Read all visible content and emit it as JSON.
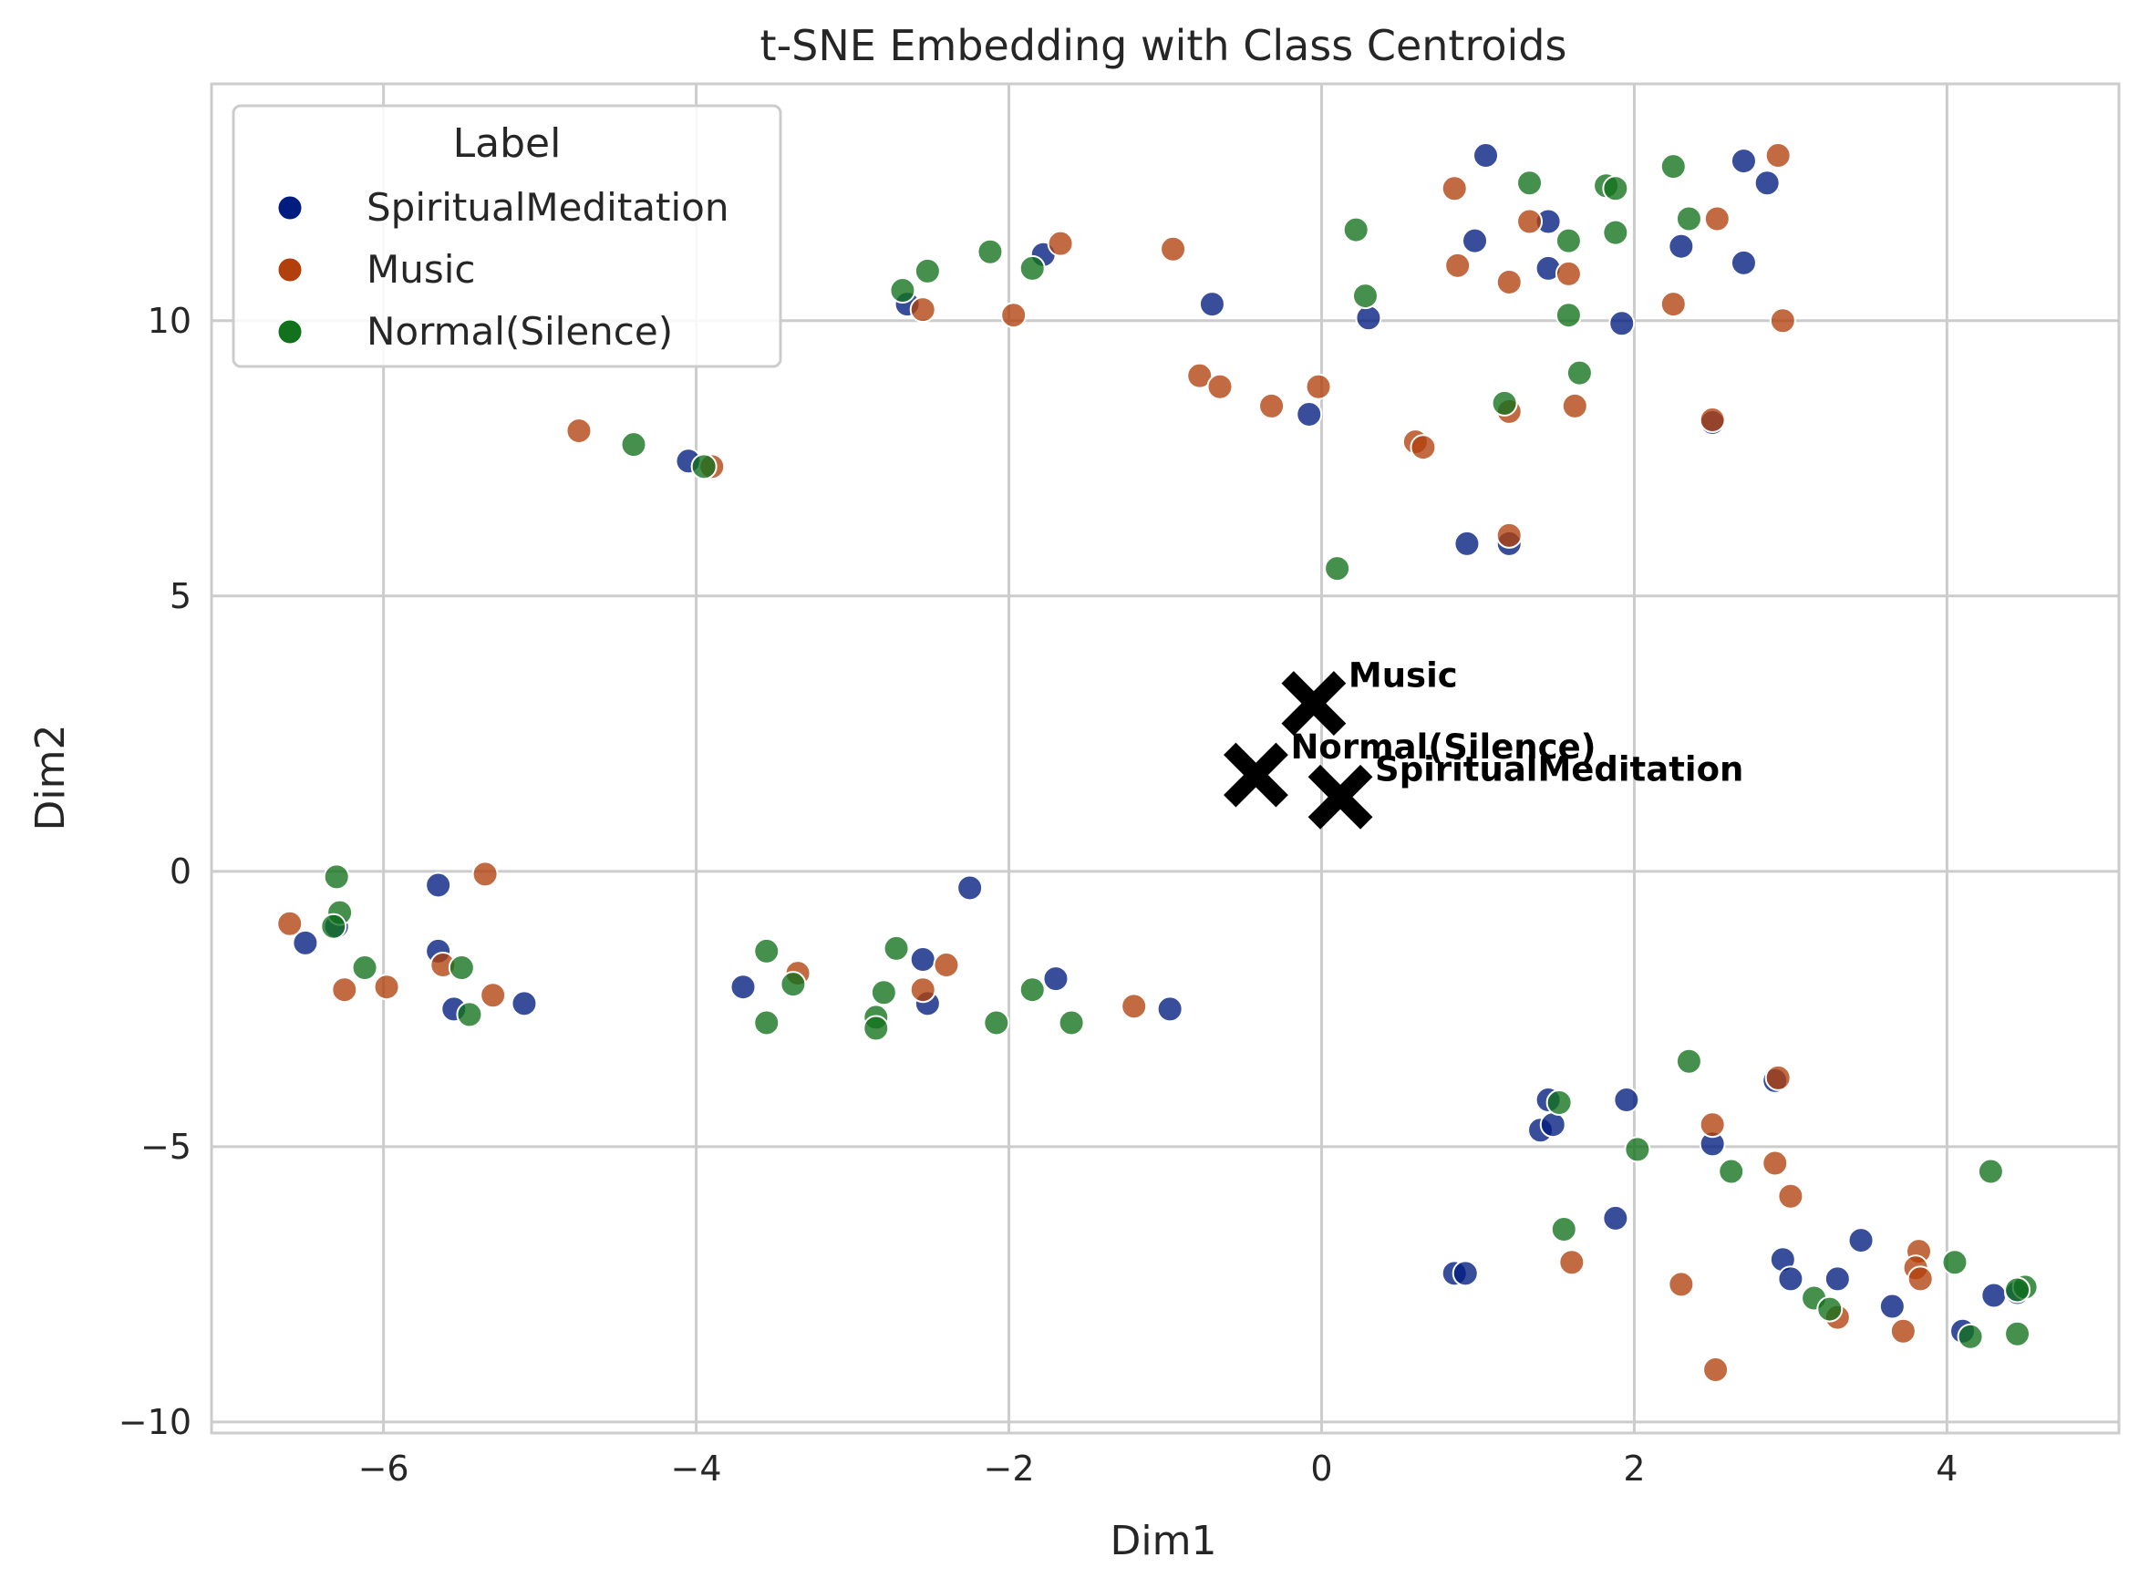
{
  "chart_data": {
    "type": "scatter",
    "title": "t-SNE Embedding with Class Centroids",
    "xlabel": "Dim1",
    "ylabel": "Dim2",
    "xlim": [
      -7.1,
      5.1
    ],
    "ylim": [
      -10.2,
      14.3
    ],
    "xticks": [
      -6,
      -4,
      -2,
      0,
      2,
      4
    ],
    "yticks": [
      -10,
      -5,
      0,
      5,
      10
    ],
    "xtick_labels": [
      "−6",
      "−4",
      "−2",
      "0",
      "2",
      "4"
    ],
    "ytick_labels": [
      "−10",
      "−5",
      "0",
      "5",
      "10"
    ],
    "grid": true,
    "legend": {
      "title": "Label",
      "placement": "top-left"
    },
    "series": [
      {
        "name": "SpiritualMeditation",
        "color": "#001c7f",
        "points": [
          [
            1.05,
            13.0
          ],
          [
            2.7,
            12.9
          ],
          [
            2.85,
            12.5
          ],
          [
            1.45,
            11.8
          ],
          [
            0.98,
            11.45
          ],
          [
            1.45,
            10.95
          ],
          [
            2.3,
            11.35
          ],
          [
            2.7,
            11.05
          ],
          [
            1.92,
            9.95
          ],
          [
            0.3,
            10.05
          ],
          [
            -0.7,
            10.3
          ],
          [
            -2.65,
            10.3
          ],
          [
            -1.78,
            11.2
          ],
          [
            -0.08,
            8.3
          ],
          [
            2.5,
            8.15
          ],
          [
            0.93,
            5.95
          ],
          [
            1.2,
            5.95
          ],
          [
            -4.05,
            7.45
          ],
          [
            -5.65,
            -0.25
          ],
          [
            -6.3,
            -1.0
          ],
          [
            -6.5,
            -1.3
          ],
          [
            -5.65,
            -1.45
          ],
          [
            -5.55,
            -2.5
          ],
          [
            -5.1,
            -2.4
          ],
          [
            -3.7,
            -2.1
          ],
          [
            -2.55,
            -1.6
          ],
          [
            -2.52,
            -2.4
          ],
          [
            -2.25,
            -0.3
          ],
          [
            -1.7,
            -1.95
          ],
          [
            -0.97,
            -2.5
          ],
          [
            1.45,
            -4.15
          ],
          [
            1.4,
            -4.7
          ],
          [
            1.48,
            -4.6
          ],
          [
            1.95,
            -4.15
          ],
          [
            2.5,
            -4.95
          ],
          [
            2.9,
            -3.8
          ],
          [
            1.88,
            -6.3
          ],
          [
            0.85,
            -7.3
          ],
          [
            0.92,
            -7.3
          ],
          [
            2.95,
            -7.05
          ],
          [
            3.0,
            -7.4
          ],
          [
            3.3,
            -7.4
          ],
          [
            3.45,
            -6.7
          ],
          [
            3.65,
            -7.9
          ],
          [
            4.1,
            -8.35
          ],
          [
            4.3,
            -7.7
          ],
          [
            4.45,
            -7.65
          ]
        ]
      },
      {
        "name": "Music",
        "color": "#b1400d",
        "points": [
          [
            2.92,
            13.0
          ],
          [
            0.85,
            12.4
          ],
          [
            1.33,
            11.8
          ],
          [
            2.53,
            11.85
          ],
          [
            0.87,
            11.0
          ],
          [
            1.58,
            10.85
          ],
          [
            1.2,
            10.7
          ],
          [
            2.25,
            10.3
          ],
          [
            2.95,
            10.0
          ],
          [
            -1.67,
            11.4
          ],
          [
            -0.95,
            11.3
          ],
          [
            -2.55,
            10.2
          ],
          [
            -1.97,
            10.1
          ],
          [
            -0.78,
            9.0
          ],
          [
            -0.65,
            8.8
          ],
          [
            -0.02,
            8.8
          ],
          [
            -0.32,
            8.45
          ],
          [
            1.2,
            8.35
          ],
          [
            1.62,
            8.45
          ],
          [
            2.5,
            8.2
          ],
          [
            0.6,
            7.8
          ],
          [
            0.65,
            7.7
          ],
          [
            1.2,
            6.1
          ],
          [
            -4.75,
            8.0
          ],
          [
            -3.9,
            7.35
          ],
          [
            -6.6,
            -0.95
          ],
          [
            -5.35,
            -0.05
          ],
          [
            -5.62,
            -1.7
          ],
          [
            -6.25,
            -2.15
          ],
          [
            -5.98,
            -2.1
          ],
          [
            -5.3,
            -2.25
          ],
          [
            -3.35,
            -1.85
          ],
          [
            -2.4,
            -1.7
          ],
          [
            -2.55,
            -2.15
          ],
          [
            -1.2,
            -2.45
          ],
          [
            2.92,
            -3.75
          ],
          [
            2.5,
            -4.6
          ],
          [
            2.9,
            -5.3
          ],
          [
            3.0,
            -5.9
          ],
          [
            1.6,
            -7.1
          ],
          [
            2.3,
            -7.5
          ],
          [
            2.52,
            -9.05
          ],
          [
            3.3,
            -8.1
          ],
          [
            3.72,
            -8.35
          ],
          [
            3.82,
            -6.9
          ],
          [
            3.8,
            -7.2
          ],
          [
            3.83,
            -7.4
          ]
        ]
      },
      {
        "name": "Normal(Silence)",
        "color": "#12711c",
        "points": [
          [
            1.33,
            12.5
          ],
          [
            1.82,
            12.45
          ],
          [
            1.88,
            12.4
          ],
          [
            2.25,
            12.8
          ],
          [
            2.35,
            11.85
          ],
          [
            1.58,
            11.45
          ],
          [
            0.22,
            11.65
          ],
          [
            1.88,
            11.6
          ],
          [
            1.58,
            10.1
          ],
          [
            0.28,
            10.45
          ],
          [
            1.65,
            9.05
          ],
          [
            1.17,
            8.5
          ],
          [
            0.1,
            5.5
          ],
          [
            -2.12,
            11.25
          ],
          [
            -1.85,
            10.95
          ],
          [
            -2.52,
            10.9
          ],
          [
            -2.68,
            10.55
          ],
          [
            -4.4,
            7.75
          ],
          [
            -3.95,
            7.35
          ],
          [
            -6.3,
            -0.1
          ],
          [
            -6.28,
            -0.75
          ],
          [
            -6.32,
            -1.0
          ],
          [
            -6.12,
            -1.75
          ],
          [
            -5.5,
            -1.75
          ],
          [
            -5.45,
            -2.6
          ],
          [
            -3.55,
            -1.45
          ],
          [
            -3.55,
            -2.75
          ],
          [
            -3.38,
            -2.05
          ],
          [
            -2.72,
            -1.4
          ],
          [
            -2.8,
            -2.2
          ],
          [
            -2.85,
            -2.65
          ],
          [
            -2.85,
            -2.85
          ],
          [
            -2.08,
            -2.75
          ],
          [
            -1.85,
            -2.15
          ],
          [
            -1.6,
            -2.75
          ],
          [
            2.35,
            -3.45
          ],
          [
            1.52,
            -4.2
          ],
          [
            2.02,
            -5.05
          ],
          [
            2.62,
            -5.45
          ],
          [
            1.55,
            -6.5
          ],
          [
            3.15,
            -7.75
          ],
          [
            3.25,
            -7.95
          ],
          [
            4.05,
            -7.1
          ],
          [
            4.28,
            -5.45
          ],
          [
            4.15,
            -8.45
          ],
          [
            4.45,
            -8.4
          ],
          [
            4.5,
            -7.55
          ],
          [
            4.45,
            -7.6
          ]
        ]
      }
    ],
    "centroids": [
      {
        "label": "Music",
        "x": -0.05,
        "y": 3.05
      },
      {
        "label": "Normal(Silence)",
        "x": -0.42,
        "y": 1.75
      },
      {
        "label": "SpiritualMeditation",
        "x": 0.12,
        "y": 1.35
      }
    ]
  }
}
